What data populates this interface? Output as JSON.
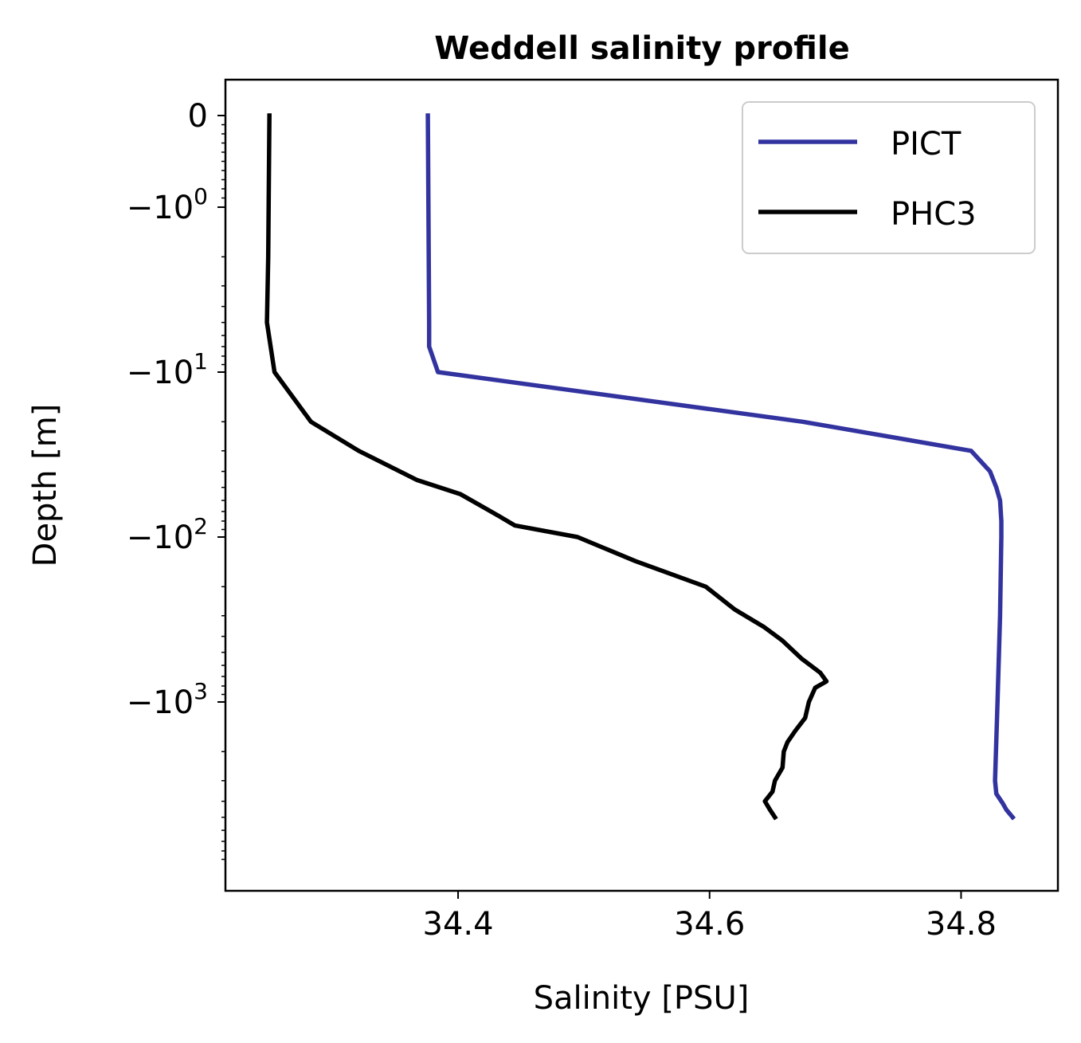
{
  "chart_data": {
    "type": "line",
    "title": "Weddell salinity profile",
    "xlabel": "Salinity [PSU]",
    "ylabel": "Depth [m]",
    "xlim": [
      34.215,
      34.877
    ],
    "y_scale": "symlog",
    "y_linthresh": 1,
    "ylim": [
      0.25,
      8000
    ],
    "x_ticks": [
      {
        "value": 34.4,
        "label": "34.4"
      },
      {
        "value": 34.6,
        "label": "34.6"
      },
      {
        "value": 34.8,
        "label": "34.8"
      }
    ],
    "y_ticks": [
      {
        "value": 0,
        "base": "0",
        "exp": ""
      },
      {
        "value": 1,
        "base": "−10",
        "exp": "0"
      },
      {
        "value": 10,
        "base": "−10",
        "exp": "1"
      },
      {
        "value": 100,
        "base": "−10",
        "exp": "2"
      },
      {
        "value": 1000,
        "base": "−10",
        "exp": "3"
      }
    ],
    "legend": {
      "placement": "upper right"
    },
    "series": [
      {
        "name": "PICT",
        "color": "#3333a0",
        "points": [
          [
            34.376,
            0
          ],
          [
            34.377,
            5
          ],
          [
            34.377,
            7
          ],
          [
            34.384,
            10
          ],
          [
            34.674,
            20
          ],
          [
            34.808,
            30
          ],
          [
            34.823,
            40
          ],
          [
            34.828,
            50
          ],
          [
            34.831,
            60
          ],
          [
            34.832,
            80
          ],
          [
            34.832,
            100
          ],
          [
            34.831,
            300
          ],
          [
            34.829,
            1000
          ],
          [
            34.827,
            3000
          ],
          [
            34.828,
            3600
          ],
          [
            34.833,
            4100
          ],
          [
            34.836,
            4500
          ],
          [
            34.841,
            5000
          ]
        ]
      },
      {
        "name": "PHC3",
        "color": "#000000",
        "points": [
          [
            34.25,
            0
          ],
          [
            34.249,
            2
          ],
          [
            34.248,
            5
          ],
          [
            34.254,
            10
          ],
          [
            34.283,
            20
          ],
          [
            34.321,
            30
          ],
          [
            34.367,
            45
          ],
          [
            34.402,
            55
          ],
          [
            34.433,
            75
          ],
          [
            34.445,
            85
          ],
          [
            34.495,
            100
          ],
          [
            34.541,
            140
          ],
          [
            34.597,
            200
          ],
          [
            34.62,
            275
          ],
          [
            34.643,
            350
          ],
          [
            34.658,
            425
          ],
          [
            34.673,
            545
          ],
          [
            34.688,
            665
          ],
          [
            34.693,
            750
          ],
          [
            34.684,
            820
          ],
          [
            34.679,
            1000
          ],
          [
            34.676,
            1250
          ],
          [
            34.668,
            1500
          ],
          [
            34.662,
            1750
          ],
          [
            34.659,
            2000
          ],
          [
            34.658,
            2500
          ],
          [
            34.652,
            3000
          ],
          [
            34.65,
            3500
          ],
          [
            34.644,
            4000
          ],
          [
            34.648,
            4500
          ],
          [
            34.652,
            5000
          ]
        ]
      }
    ]
  }
}
